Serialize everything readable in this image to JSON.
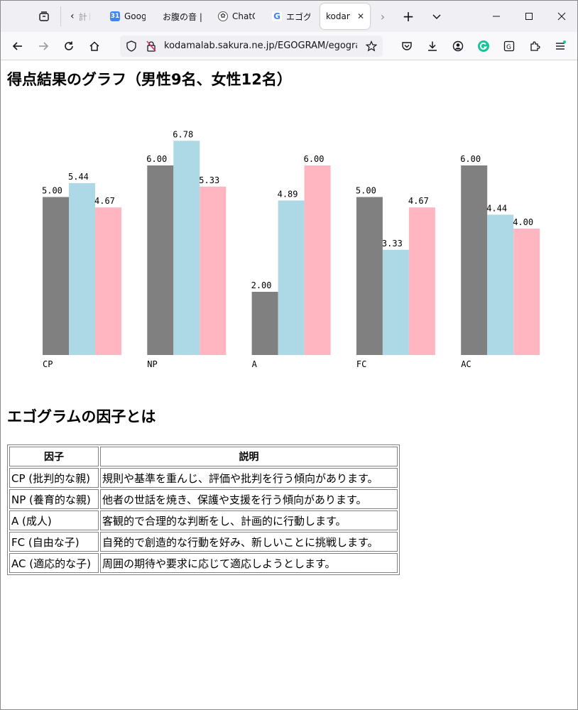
{
  "browser": {
    "tabs": [
      {
        "label": "計ト",
        "icon": "back-arrow-icon"
      },
      {
        "label": "Google",
        "icon": "google-calendar-icon"
      },
      {
        "label": "お腹の音 |",
        "icon": "none"
      },
      {
        "label": "ChatGPT",
        "icon": "chatgpt-icon"
      },
      {
        "label": "エゴグラム",
        "icon": "google-icon"
      },
      {
        "label": "kodama",
        "icon": "none"
      }
    ],
    "url": "kodamalab.sakura.ne.jp/EGOGRAM/egogram"
  },
  "page": {
    "chart_heading": "得点結果のグラフ（男性9名、女性12名）",
    "table_heading": "エゴグラムの因子とは",
    "table": {
      "headers": [
        "因子",
        "説明"
      ],
      "rows": [
        [
          "CP (批判的な親)",
          "規則や基準を重んじ、評価や批判を行う傾向があります。"
        ],
        [
          "NP (養育的な親)",
          "他者の世話を焼き、保護や支援を行う傾向があります。"
        ],
        [
          "A (成人)",
          "客観的で合理的な判断をし、計画的に行動します。"
        ],
        [
          "FC (自由な子)",
          "自発的で創造的な行動を好み、新しいことに挑戦します。"
        ],
        [
          "AC (適応的な子)",
          "周囲の期待や要求に応じて適応しようとします。"
        ]
      ]
    }
  },
  "chart_data": {
    "type": "bar",
    "categories": [
      "CP",
      "NP",
      "A",
      "FC",
      "AC"
    ],
    "series": [
      {
        "values": [
          5.0,
          6.0,
          2.0,
          5.0,
          6.0
        ],
        "color": "#808080"
      },
      {
        "values": [
          5.44,
          6.78,
          4.89,
          3.33,
          4.44
        ],
        "color": "#add8e6"
      },
      {
        "values": [
          4.67,
          5.33,
          6.0,
          4.67,
          4.0
        ],
        "color": "#ffb6c1"
      }
    ],
    "ylim": [
      0,
      10
    ],
    "value_labels": [
      [
        "5.00",
        "5.44",
        "4.67"
      ],
      [
        "6.00",
        "6.78",
        "5.33"
      ],
      [
        "2.00",
        "4.89",
        "6.00"
      ],
      [
        "5.00",
        "3.33",
        "4.67"
      ],
      [
        "6.00",
        "4.44",
        "4.00"
      ]
    ],
    "grid": false,
    "legend": "none"
  }
}
